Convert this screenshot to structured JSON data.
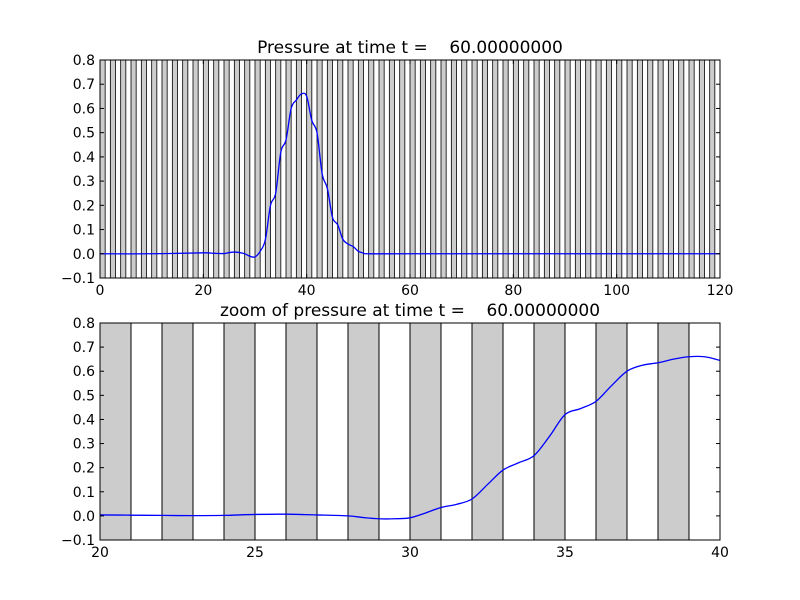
{
  "chart_data": [
    {
      "type": "line",
      "title": "Pressure at time t =    60.00000000",
      "xlabel": "",
      "ylabel": "",
      "xlim": [
        0,
        120
      ],
      "ylim": [
        -0.1,
        0.8
      ],
      "xticks": [
        0,
        20,
        40,
        60,
        80,
        100,
        120
      ],
      "xtick_labels": [
        "0",
        "20",
        "40",
        "60",
        "80",
        "100",
        "120"
      ],
      "yticks": [
        -0.1,
        0.0,
        0.1,
        0.2,
        0.3,
        0.4,
        0.5,
        0.6,
        0.7,
        0.8
      ],
      "ytick_labels": [
        "−0.1",
        "0.0",
        "0.1",
        "0.2",
        "0.3",
        "0.4",
        "0.5",
        "0.6",
        "0.7",
        "0.8"
      ],
      "bands": {
        "start": 0,
        "end": 120,
        "width": 1,
        "fill": "#cccccc",
        "stroke": "#000000"
      },
      "grid": false,
      "series": [
        {
          "color": "#0000ff",
          "x": [
            0,
            10,
            20,
            22,
            24,
            25,
            26,
            27,
            28,
            29,
            30,
            31,
            32,
            33,
            34,
            35,
            36,
            37,
            38,
            39,
            40,
            41,
            42,
            43,
            44,
            45,
            46,
            47,
            48,
            49,
            50,
            51,
            52,
            60,
            120
          ],
          "y": [
            0.0,
            0.0,
            0.004,
            0.002,
            0.001,
            0.005,
            0.007,
            0.005,
            0.0,
            -0.01,
            -0.013,
            0.01,
            0.058,
            0.2,
            0.25,
            0.42,
            0.47,
            0.6,
            0.635,
            0.66,
            0.65,
            0.55,
            0.5,
            0.33,
            0.27,
            0.15,
            0.12,
            0.06,
            0.04,
            0.03,
            0.01,
            0.003,
            0.0,
            0.0,
            0.0
          ]
        }
      ]
    },
    {
      "type": "line",
      "title": "zoom of pressure at time t =    60.00000000",
      "xlabel": "",
      "ylabel": "",
      "xlim": [
        20,
        40
      ],
      "ylim": [
        -0.1,
        0.8
      ],
      "xticks": [
        20,
        25,
        30,
        35,
        40
      ],
      "xtick_labels": [
        "20",
        "25",
        "30",
        "35",
        "40"
      ],
      "yticks": [
        -0.1,
        0.0,
        0.1,
        0.2,
        0.3,
        0.4,
        0.5,
        0.6,
        0.7,
        0.8
      ],
      "ytick_labels": [
        "−0.1",
        "0.0",
        "0.1",
        "0.2",
        "0.3",
        "0.4",
        "0.5",
        "0.6",
        "0.7",
        "0.8"
      ],
      "bands": {
        "start": 20,
        "end": 40,
        "width": 1,
        "fill": "#cccccc",
        "stroke": "#000000"
      },
      "grid": false,
      "series": [
        {
          "color": "#0000ff",
          "x": [
            20,
            21,
            22,
            23,
            24,
            25,
            26,
            27,
            28,
            28.5,
            29,
            29.5,
            30,
            30.5,
            31,
            31.5,
            32,
            32.5,
            33,
            33.5,
            34,
            34.5,
            35,
            35.5,
            36,
            36.5,
            37,
            37.5,
            38,
            38.5,
            39,
            39.5,
            40
          ],
          "y": [
            0.004,
            0.003,
            0.002,
            0.001,
            0.002,
            0.006,
            0.007,
            0.004,
            0.0,
            -0.007,
            -0.012,
            -0.012,
            -0.008,
            0.012,
            0.035,
            0.048,
            0.07,
            0.13,
            0.19,
            0.22,
            0.25,
            0.33,
            0.42,
            0.445,
            0.475,
            0.54,
            0.6,
            0.625,
            0.635,
            0.65,
            0.66,
            0.66,
            0.645
          ]
        }
      ]
    }
  ]
}
